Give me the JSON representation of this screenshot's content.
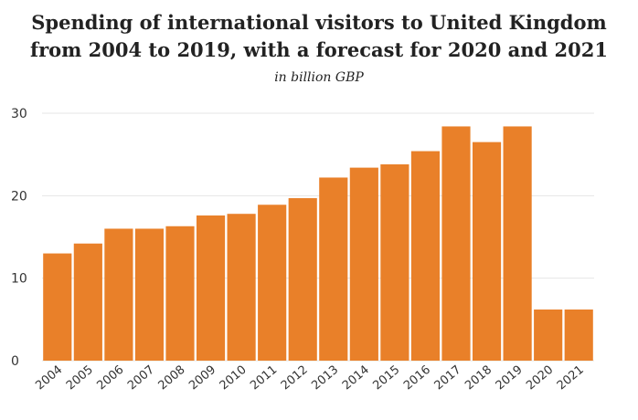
{
  "chart_data": {
    "type": "bar",
    "title_line1": "Spending of international visitors to United Kingdom",
    "title_line2": "from 2004 to 2019, with a forecast for 2020 and 2021",
    "subtitle": "in billion GBP",
    "categories": [
      "2004",
      "2005",
      "2006",
      "2007",
      "2008",
      "2009",
      "2010",
      "2011",
      "2012",
      "2013",
      "2014",
      "2015",
      "2016",
      "2017",
      "2018",
      "2019",
      "2020",
      "2021"
    ],
    "values": [
      13.0,
      14.2,
      16.0,
      16.0,
      16.3,
      17.6,
      17.8,
      18.9,
      19.7,
      22.2,
      23.4,
      23.8,
      25.4,
      28.4,
      26.5,
      28.4,
      6.2,
      6.2
    ],
    "ylim": [
      0,
      30
    ],
    "yticks": [
      0,
      10,
      20,
      30
    ],
    "xlabel": "",
    "ylabel": "",
    "grid": true,
    "bar_color": "#e98029",
    "grid_color": "#e6e6e6"
  }
}
